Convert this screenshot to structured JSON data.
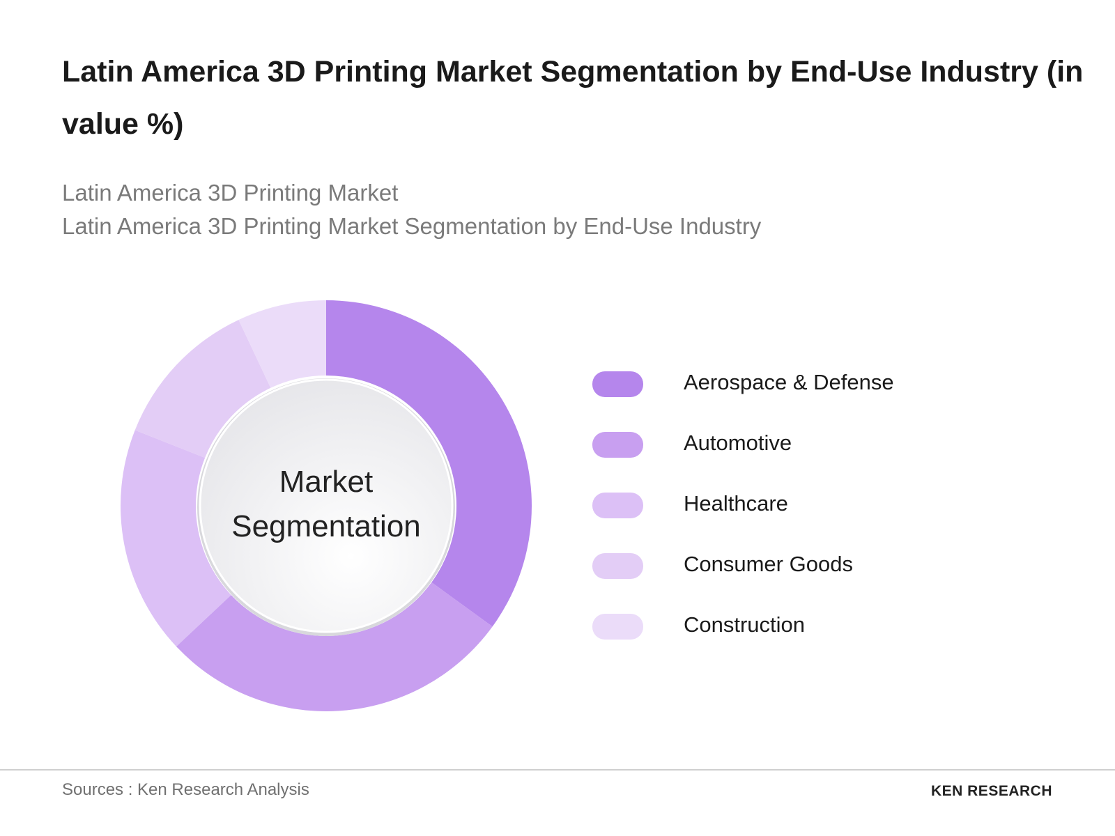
{
  "chart_data": {
    "type": "pie",
    "donut": true,
    "title": "Latin America 3D Printing Market Segmentation by End-Use Industry (in value %)",
    "subtitle_lines": [
      "Latin America 3D Printing Market",
      "Latin America 3D Printing Market Segmentation by End-Use Industry"
    ],
    "center_label": "Market Segmentation",
    "categories": [
      "Aerospace & Defense",
      "Automotive",
      "Healthcare",
      "Consumer Goods",
      "Construction"
    ],
    "values": [
      35,
      28,
      18,
      12,
      7
    ],
    "colors": [
      "#b586ec",
      "#c89ff0",
      "#dcc0f6",
      "#e3cdf6",
      "#ebdcf9"
    ],
    "source": "Sources : Ken Research Analysis",
    "brand": "KEN RESEARCH"
  }
}
